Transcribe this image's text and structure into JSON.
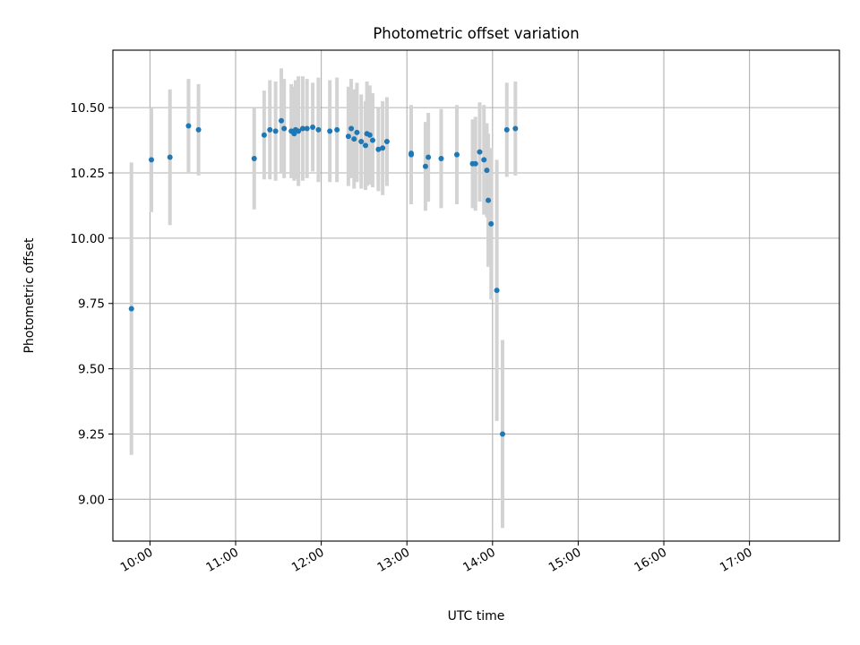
{
  "chart_data": {
    "type": "scatter",
    "title": "Photometric offset variation",
    "xlabel": "UTC time",
    "ylabel": "Photometric offset",
    "x_ticks": [
      "10:00",
      "11:00",
      "12:00",
      "13:00",
      "14:00",
      "15:00",
      "16:00",
      "17:00"
    ],
    "y_ticks": [
      "9.00",
      "9.25",
      "9.50",
      "9.75",
      "10.00",
      "10.25",
      "10.50"
    ],
    "xlim": [
      "09:34",
      "18:03"
    ],
    "ylim": [
      8.84,
      10.72
    ],
    "grid": true,
    "colors": {
      "point": "#1f77b4",
      "errorbar": "#d3d3d3",
      "grid": "#b0b0b0"
    },
    "series": [
      {
        "x": [
          "09:47",
          "10:01",
          "10:14",
          "10:27",
          "10:34",
          "11:13",
          "11:20",
          "11:24",
          "11:28",
          "11:32",
          "11:34",
          "11:39",
          "11:41",
          "11:42",
          "11:44",
          "11:47",
          "11:50",
          "11:54",
          "11:58",
          "12:06",
          "12:11",
          "12:19",
          "12:21",
          "12:23",
          "12:25",
          "12:28",
          "12:31",
          "12:32",
          "12:34",
          "12:36",
          "12:40",
          "12:43",
          "12:46",
          "13:03",
          "13:03",
          "13:13",
          "13:15",
          "13:24",
          "13:35",
          "13:46",
          "13:48",
          "13:51",
          "13:54",
          "13:56",
          "13:57",
          "13:59",
          "14:03",
          "14:07",
          "14:10",
          "14:16"
        ],
        "y": [
          9.73,
          10.3,
          10.31,
          10.43,
          10.415,
          10.305,
          10.395,
          10.415,
          10.41,
          10.45,
          10.42,
          10.41,
          10.4,
          10.415,
          10.41,
          10.42,
          10.42,
          10.425,
          10.415,
          10.41,
          10.415,
          10.39,
          10.42,
          10.38,
          10.405,
          10.37,
          10.355,
          10.4,
          10.395,
          10.375,
          10.34,
          10.345,
          10.37,
          10.325,
          10.32,
          10.275,
          10.31,
          10.305,
          10.32,
          10.285,
          10.285,
          10.33,
          10.3,
          10.26,
          10.145,
          10.055,
          9.8,
          9.25,
          10.415,
          10.42
        ],
        "err": [
          0.56,
          0.2,
          0.26,
          0.18,
          0.175,
          0.195,
          0.17,
          0.19,
          0.19,
          0.2,
          0.19,
          0.18,
          0.18,
          0.19,
          0.21,
          0.2,
          0.19,
          0.17,
          0.2,
          0.195,
          0.2,
          0.19,
          0.19,
          0.19,
          0.19,
          0.18,
          0.17,
          0.2,
          0.19,
          0.18,
          0.16,
          0.18,
          0.17,
          0.17,
          0.19,
          0.17,
          0.17,
          0.19,
          0.19,
          0.17,
          0.18,
          0.19,
          0.21,
          0.18,
          0.255,
          0.29,
          0.5,
          0.36,
          0.18,
          0.18
        ]
      }
    ]
  }
}
